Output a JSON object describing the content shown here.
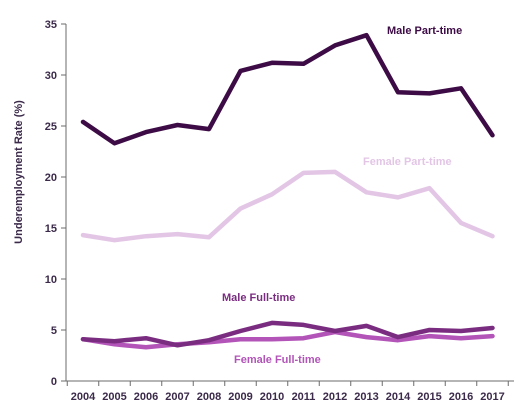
{
  "chart_data": {
    "type": "line",
    "title": "",
    "xlabel": "",
    "ylabel": "Underemployment Rate (%)",
    "ylim": [
      0,
      35
    ],
    "yticks": [
      "0",
      "5",
      "10",
      "15",
      "20",
      "25",
      "30",
      "35"
    ],
    "grid": false,
    "categories": [
      "2004",
      "2005",
      "2006",
      "2007",
      "2008",
      "2009",
      "2010",
      "2011",
      "2012",
      "2013",
      "2014",
      "2015",
      "2016",
      "2017"
    ],
    "series": [
      {
        "name": "Male Part-time",
        "color": "#3d0b45",
        "values": [
          25.4,
          23.3,
          24.4,
          25.1,
          24.7,
          30.4,
          31.2,
          31.1,
          32.9,
          33.9,
          28.3,
          28.2,
          28.7,
          24.1
        ]
      },
      {
        "name": "Female Part-time",
        "color": "#e3c6e6",
        "values": [
          14.3,
          13.8,
          14.2,
          14.4,
          14.1,
          16.9,
          18.3,
          20.4,
          20.5,
          18.5,
          18.0,
          18.9,
          15.5,
          14.2
        ]
      },
      {
        "name": "Male Full-time",
        "color": "#7a2d80",
        "values": [
          4.1,
          3.9,
          4.2,
          3.5,
          4.0,
          4.9,
          5.7,
          5.5,
          4.9,
          5.4,
          4.3,
          5.0,
          4.9,
          5.2
        ]
      },
      {
        "name": "Female Full-time",
        "color": "#b254b8",
        "values": [
          4.1,
          3.6,
          3.3,
          3.6,
          3.8,
          4.1,
          4.1,
          4.2,
          4.8,
          4.3,
          4.0,
          4.4,
          4.2,
          4.4
        ]
      }
    ]
  }
}
